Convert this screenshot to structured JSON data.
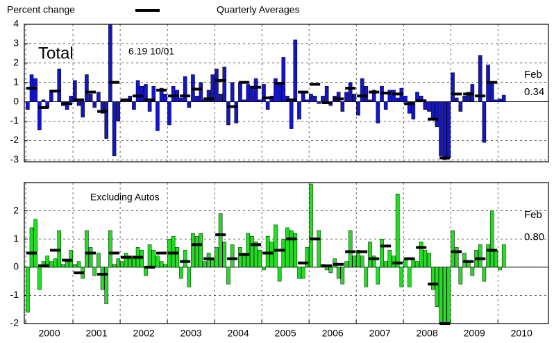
{
  "chart_data": [
    {
      "type": "bar",
      "legend": "top",
      "annotations": [
        "Total",
        "6.19 10/01",
        "Feb",
        "0.34"
      ],
      "xlim": [
        1999.97,
        2011.07
      ],
      "xticks": [
        2000,
        2001,
        2002,
        2003,
        2004,
        2005,
        2006,
        2007,
        2008,
        2009,
        2010
      ],
      "ylim": [
        -3.1,
        4
      ],
      "yticks": [
        -3,
        -2,
        -1,
        0,
        1,
        2,
        3,
        4
      ],
      "grid": true,
      "series": [
        {
          "name": "Percent change",
          "color": "#1414c8",
          "values": [
            -0.4,
            1.4,
            1.2,
            -1.45,
            0.1,
            -0.3,
            0.6,
            0.0,
            1.7,
            -0.2,
            -0.4,
            0.3,
            1.1,
            -0.2,
            -0.8,
            1.4,
            0.4,
            -0.3,
            0.5,
            -0.6,
            -1.9,
            4.0,
            -2.8,
            -1.0,
            0.1,
            0.0,
            0.3,
            -0.4,
            1.1,
            0.8,
            0.9,
            -0.5,
            0.8,
            -1.5,
            0.7,
            0.4,
            -1.2,
            0.8,
            0.6,
            0.2,
            1.3,
            -0.3,
            1.4,
            0.3,
            1.0,
            0.1,
            0.6,
            1.4,
            1.7,
            0.4,
            1.8,
            -1.2,
            1.0,
            -1.1,
            1.0,
            0.1,
            0.9,
            0.8,
            1.2,
            0.1,
            0.9,
            -0.4,
            0.3,
            1.2,
            0.9,
            2.3,
            0.3,
            -1.4,
            3.2,
            -0.9,
            0.5,
            0.1,
            0.4,
            0.3,
            -0.1,
            0.3,
            0.8,
            -0.2,
            0.3,
            0.5,
            -0.5,
            0.5,
            1.0,
            0.4,
            -0.7,
            1.2,
            0.8,
            0.1,
            0.6,
            -1.1,
            0.8,
            -0.4,
            0.6,
            0.6,
            0.2,
            0.7,
            0.3,
            -0.6,
            -0.9,
            0.5,
            0.3,
            -0.4,
            -0.5,
            -0.9,
            -1.3,
            -2.8,
            -3.0,
            -2.9,
            1.5,
            0.2,
            -0.5,
            0.3,
            0.5,
            0.9,
            0.0,
            2.4,
            -2.1,
            1.9,
            1.0,
            0.1,
            0.15,
            0.34
          ]
        },
        {
          "name": "Quarterly Averages",
          "color": "#000000",
          "values": [
            0.7,
            -0.3,
            0.55,
            -0.1,
            0.1,
            0.5,
            -0.5,
            1.0,
            0.1,
            0.3,
            0.1,
            0.6,
            0.3,
            0.3,
            0.65,
            0.15,
            1.1,
            -0.25,
            1.0,
            0.75,
            0.2,
            0.95,
            0.1,
            0.5,
            0.9,
            -0.05,
            0.15,
            0.7,
            0.3,
            0.5,
            0.45,
            0.4,
            -0.1,
            0.05,
            -0.9,
            -2.9,
            0.4,
            0.4,
            0.3,
            1.0
          ]
        }
      ]
    },
    {
      "type": "bar",
      "annotations": [
        "Excluding Autos",
        "Feb",
        "0.80"
      ],
      "xlim": [
        1999.97,
        2011.07
      ],
      "xticks": [
        2000,
        2001,
        2002,
        2003,
        2004,
        2005,
        2006,
        2007,
        2008,
        2009,
        2010
      ],
      "ylim": [
        -2,
        3
      ],
      "yticks": [
        -2,
        -1,
        0,
        1,
        2
      ],
      "grid": true,
      "series": [
        {
          "color": "#22dd22",
          "values": [
            -1.6,
            1.4,
            1.7,
            -0.8,
            0.2,
            0.4,
            0.2,
            0.3,
            1.3,
            0.1,
            0.2,
            0.6,
            0.1,
            0.2,
            -0.4,
            1.3,
            0.7,
            -0.3,
            0.5,
            -0.8,
            -1.3,
            1.3,
            0.1,
            0.3,
            0.2,
            0.5,
            0.4,
            0.4,
            0.7,
            0.6,
            -0.3,
            0.8,
            0.6,
            0.4,
            0.2,
            0.1,
            1.0,
            1.1,
            0.7,
            -0.4,
            0.6,
            -0.7,
            1.2,
            1.1,
            1.2,
            0.2,
            0.5,
            0.3,
            0.7,
            1.9,
            0.9,
            -0.6,
            0.8,
            0.0,
            0.7,
            0.5,
            1.2,
            1.1,
            0.9,
            0.6,
            -0.1,
            1.1,
            0.9,
            1.5,
            -0.5,
            1.0,
            1.4,
            1.3,
            1.2,
            -0.4,
            -0.4,
            0.7,
            2.95,
            0.0,
            1.3,
            0.1,
            -0.1,
            -0.2,
            0.3,
            -0.4,
            -0.6,
            0.2,
            1.3,
            0.4,
            0.6,
            0.4,
            -0.7,
            0.9,
            0.4,
            -0.6,
            1.0,
            0.2,
            0.6,
            0.4,
            2.6,
            -0.7,
            0.3,
            -0.7,
            0.3,
            0.2,
            0.9,
            0.6,
            0.5,
            -0.8,
            -1.4,
            -2.0,
            -2.0,
            -2.0,
            1.3,
            0.7,
            -0.6,
            0.5,
            0.2,
            -0.3,
            0.6,
            0.8,
            -0.5,
            0.8,
            2.0,
            0.6,
            -0.1,
            0.8
          ]
        },
        {
          "color": "#000000",
          "values": [
            0.5,
            0.05,
            0.6,
            0.25,
            -0.2,
            0.5,
            -0.25,
            0.5,
            0.35,
            0.35,
            0.0,
            0.5,
            0.5,
            0.2,
            0.8,
            0.3,
            1.15,
            0.3,
            0.45,
            0.8,
            0.5,
            0.6,
            1.0,
            0.15,
            1.0,
            0.05,
            0.1,
            0.55,
            0.55,
            0.3,
            0.75,
            0.15,
            0.3,
            0.7,
            -0.6,
            -2.0,
            0.55,
            0.2,
            0.3,
            0.6
          ]
        }
      ]
    }
  ]
}
